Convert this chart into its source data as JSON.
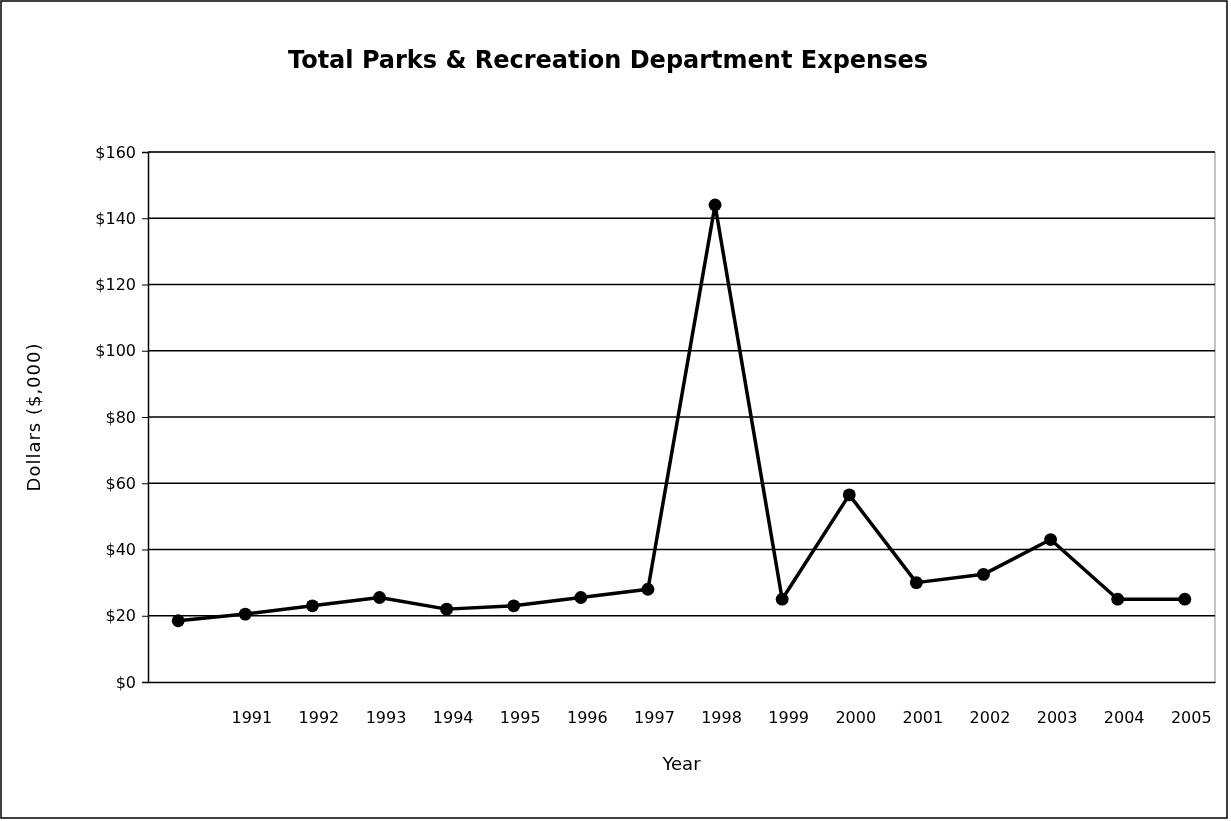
{
  "chart_data": {
    "type": "line",
    "title": "Total Parks & Recreation Department Expenses",
    "xlabel": "Year",
    "ylabel": "Dollars ($,000)",
    "categories": [
      null,
      "1991",
      "1992",
      "1993",
      "1994",
      "1995",
      "1996",
      "1997",
      "1998",
      "1999",
      "2000",
      "2001",
      "2002",
      "2003",
      "2004",
      "2005"
    ],
    "series": [
      {
        "color": "#000000",
        "values": [
          18.5,
          20.5,
          23,
          25.5,
          22,
          23,
          25.5,
          28,
          144,
          25,
          56.5,
          30,
          32.5,
          43,
          25,
          25
        ]
      }
    ],
    "ylim": [
      0,
      160
    ],
    "yticks": [
      {
        "value": 0,
        "label": "$0"
      },
      {
        "value": 20,
        "label": "$20"
      },
      {
        "value": 40,
        "label": "$40"
      },
      {
        "value": 60,
        "label": "$60"
      },
      {
        "value": 80,
        "label": "$80"
      },
      {
        "value": 100,
        "label": "$100"
      },
      {
        "value": 120,
        "label": "$120"
      },
      {
        "value": 140,
        "label": "$140"
      },
      {
        "value": 160,
        "label": "$160"
      }
    ],
    "grid": "y",
    "marker": "circle",
    "line_style": "solid"
  }
}
